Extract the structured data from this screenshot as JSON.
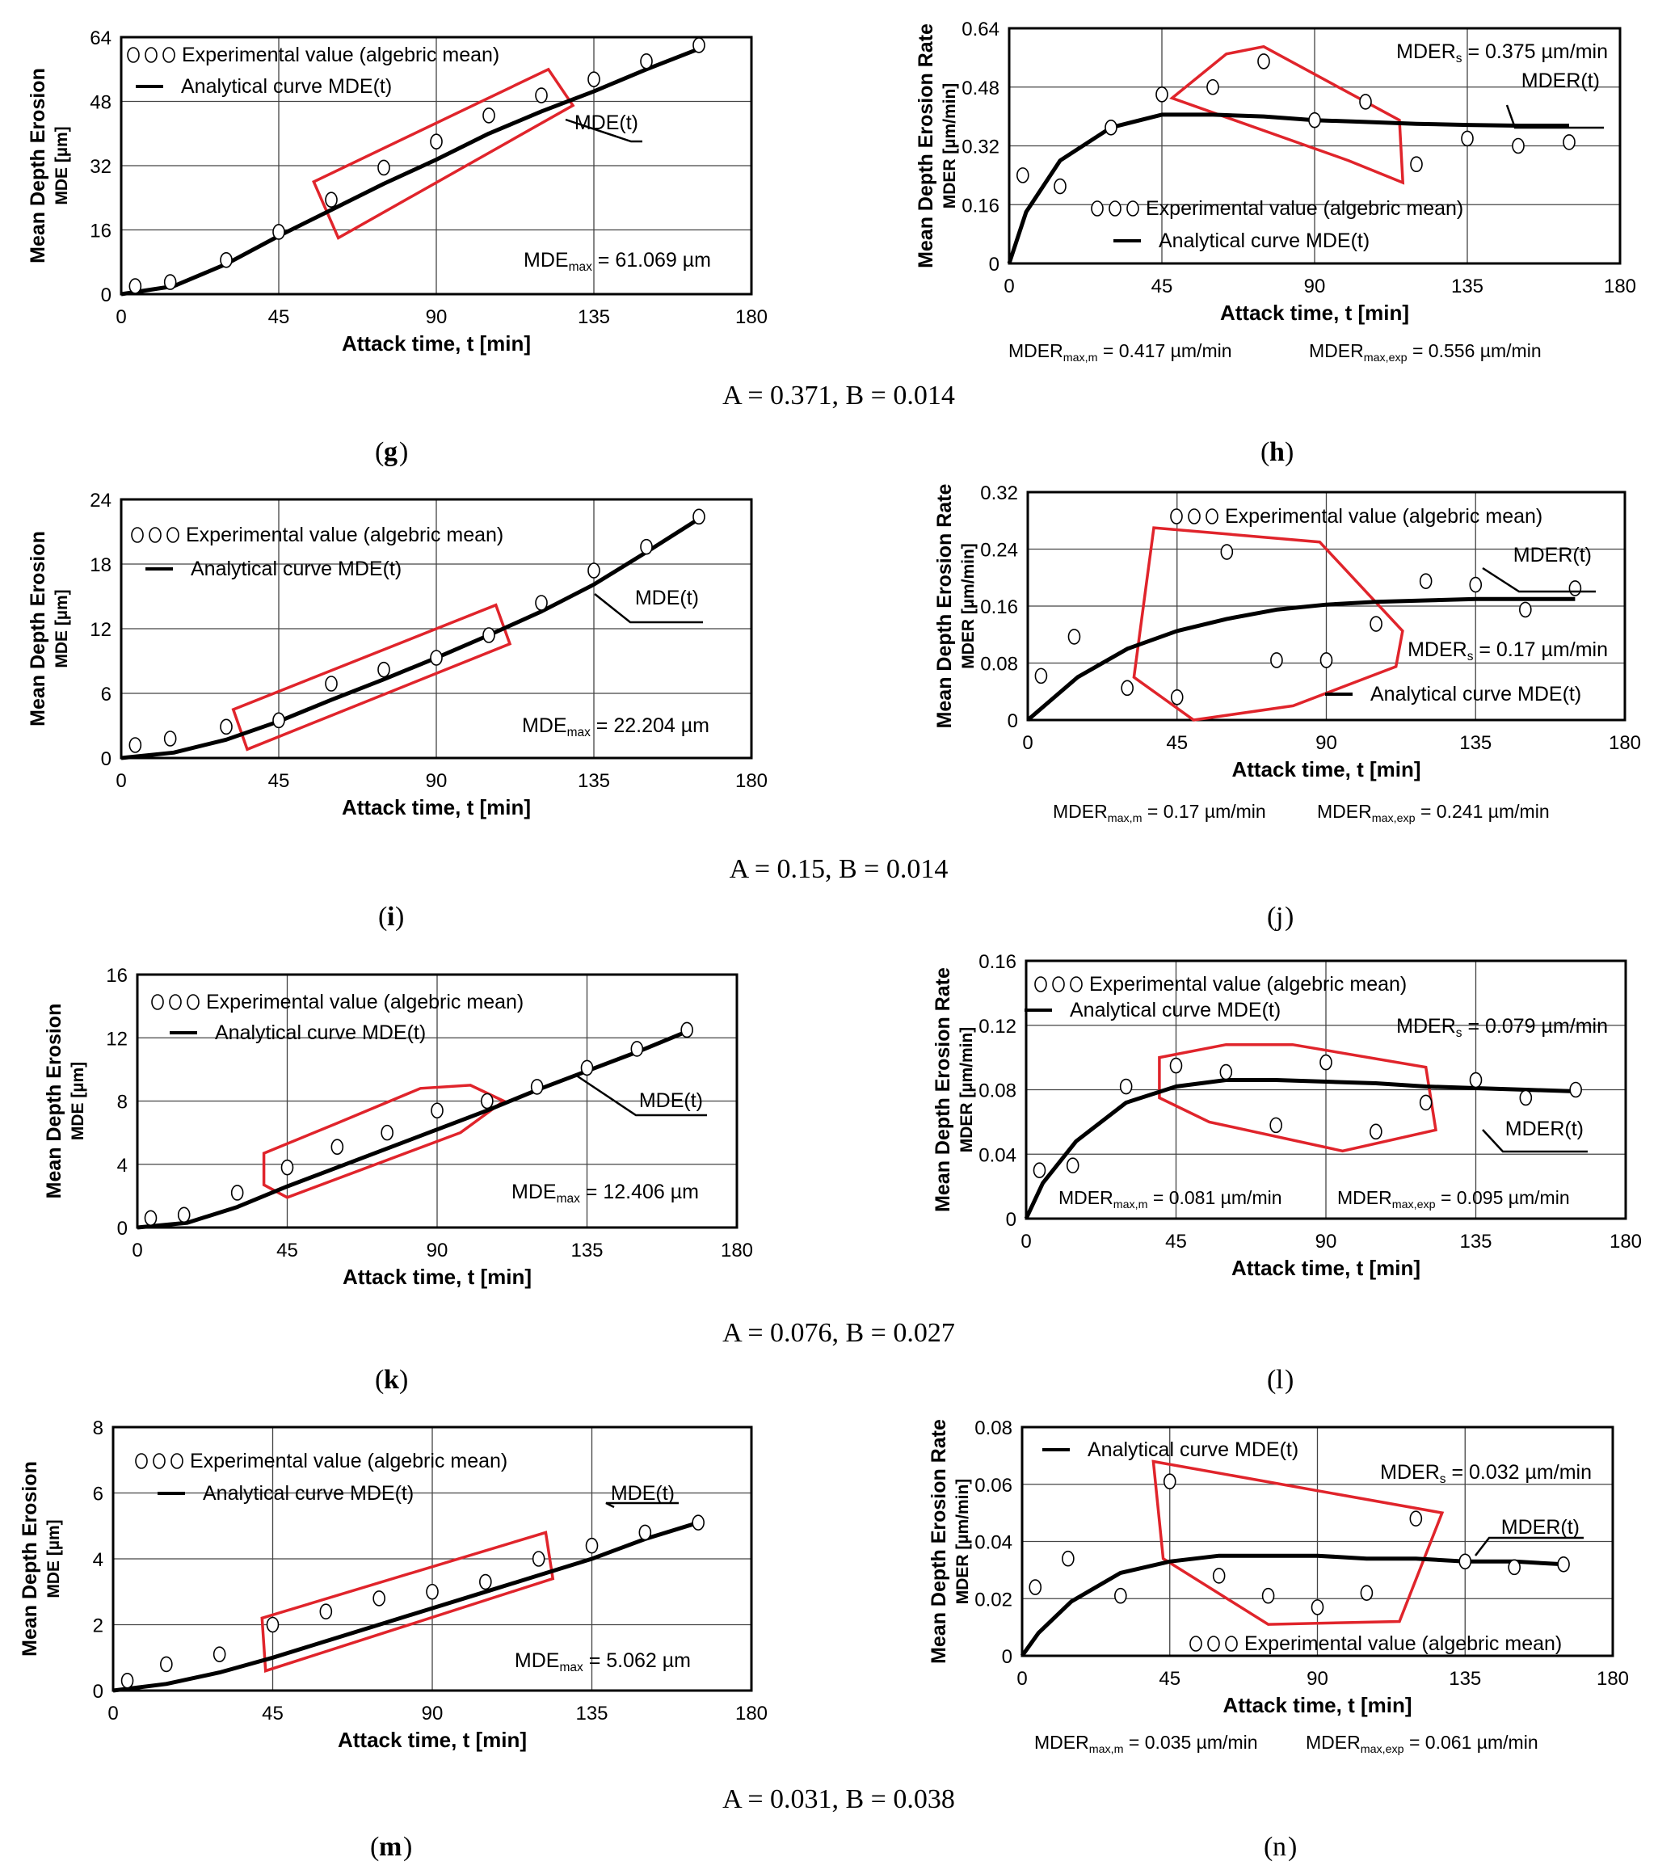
{
  "figure": {
    "rows": [
      {
        "left_id": "g",
        "right_id": "h",
        "params": "A = 0.371, B = 0.014"
      },
      {
        "left_id": "i",
        "right_id": "j",
        "params": "A = 0.15, B = 0.014"
      },
      {
        "left_id": "k",
        "right_id": "l",
        "params": "A = 0.076, B = 0.027"
      },
      {
        "left_id": "m",
        "right_id": "n",
        "params": "A = 0.031, B = 0.038"
      }
    ]
  },
  "chart_data": [
    {
      "id": "g",
      "type": "scatter+line",
      "ylabel_top": "Mean Depth Erosion",
      "ylabel_sub": "MDE [µm]",
      "xlabel": "Attack time, t [min]",
      "xlim": [
        0,
        180
      ],
      "xticks": [
        0,
        45,
        90,
        135,
        180
      ],
      "ylim": [
        0,
        64
      ],
      "yticks": [
        0,
        16,
        32,
        48,
        64
      ],
      "legend": {
        "experimental": "Experimental value (algebric mean)",
        "analytical": "Analytical curve MDE(t)"
      },
      "curve_label": "MDE(t)",
      "annotations": [
        "MDEmax = 61.069 µm"
      ],
      "experimental": {
        "x": [
          4,
          14,
          30,
          45,
          60,
          75,
          90,
          105,
          120,
          135,
          150,
          165
        ],
        "y": [
          2,
          3,
          8.5,
          15.5,
          23.5,
          31.5,
          38,
          44.5,
          49.5,
          53.5,
          58,
          62
        ]
      },
      "analytical": {
        "x": [
          0,
          15,
          30,
          45,
          60,
          75,
          90,
          105,
          120,
          135,
          150,
          165
        ],
        "y": [
          0,
          2,
          7.5,
          14.5,
          21,
          27.5,
          33.5,
          40,
          45.5,
          50.5,
          56,
          61.1
        ]
      },
      "highlight": [
        [
          55,
          28
        ],
        [
          122,
          56
        ],
        [
          129,
          47
        ],
        [
          62,
          14
        ]
      ]
    },
    {
      "id": "h",
      "type": "scatter+line",
      "ylabel_top": "Mean Depth Erosion Rate",
      "ylabel_sub": "MDER  [µm/min]",
      "xlabel": "Attack time, t [min]",
      "xlim": [
        0,
        180
      ],
      "xticks": [
        0,
        45,
        90,
        135,
        180
      ],
      "ylim": [
        0,
        0.64
      ],
      "yticks": [
        0,
        0.16,
        0.32,
        0.48,
        0.64
      ],
      "legend": {
        "experimental": "Experimental value (algebric mean)",
        "analytical": "Analytical curve MDE(t)"
      },
      "curve_label": "MDER(t)",
      "annotations": [
        "MDERs = 0.375 µm/min",
        "MDERmax,m = 0.417 µm/min",
        "MDERmax,exp = 0.556 µm/min"
      ],
      "experimental": {
        "x": [
          4,
          15,
          30,
          45,
          60,
          75,
          90,
          105,
          120,
          135,
          150,
          165
        ],
        "y": [
          0.24,
          0.21,
          0.37,
          0.46,
          0.48,
          0.55,
          0.39,
          0.44,
          0.27,
          0.34,
          0.32,
          0.33
        ]
      },
      "analytical": {
        "x": [
          0,
          5,
          15,
          30,
          45,
          60,
          75,
          90,
          105,
          120,
          135,
          150,
          165
        ],
        "y": [
          0,
          0.14,
          0.28,
          0.37,
          0.405,
          0.405,
          0.4,
          0.39,
          0.385,
          0.38,
          0.377,
          0.375,
          0.375
        ]
      },
      "highlight": [
        [
          48,
          0.45
        ],
        [
          64,
          0.57
        ],
        [
          75,
          0.59
        ],
        [
          115,
          0.39
        ],
        [
          116,
          0.22
        ],
        [
          100,
          0.28
        ],
        [
          48,
          0.45
        ]
      ]
    },
    {
      "id": "i",
      "type": "scatter+line",
      "ylabel_top": "Mean Depth Erosion",
      "ylabel_sub": "MDE [µm]",
      "xlabel": "Attack time, t [min]",
      "xlim": [
        0,
        180
      ],
      "xticks": [
        0,
        45,
        90,
        135,
        180
      ],
      "ylim": [
        0,
        24
      ],
      "yticks": [
        0,
        6,
        12,
        18,
        24
      ],
      "legend": {
        "experimental": "Experimental value (algebric mean)",
        "analytical": "Analytical curve MDE(t)"
      },
      "curve_label": "MDE(t)",
      "annotations": [
        "MDEmax = 22.204 µm"
      ],
      "experimental": {
        "x": [
          4,
          14,
          30,
          45,
          60,
          75,
          90,
          105,
          120,
          135,
          150,
          165
        ],
        "y": [
          1.2,
          1.8,
          2.9,
          3.5,
          6.9,
          8.2,
          9.3,
          11.4,
          14.4,
          17.4,
          19.6,
          22.4
        ]
      },
      "analytical": {
        "x": [
          0,
          15,
          30,
          45,
          60,
          75,
          90,
          105,
          120,
          135,
          150,
          165
        ],
        "y": [
          0,
          0.5,
          1.7,
          3.4,
          5.4,
          7.3,
          9.3,
          11.4,
          13.6,
          16.1,
          19.1,
          22.2
        ]
      },
      "highlight": [
        [
          32,
          4.5
        ],
        [
          107,
          14.2
        ],
        [
          111,
          10.6
        ],
        [
          36,
          0.8
        ]
      ]
    },
    {
      "id": "j",
      "type": "scatter+line",
      "ylabel_top": "Mean Depth Erosion Rate",
      "ylabel_sub": "MDER  [µm/min]",
      "xlabel": "Attack time, t [min]",
      "xlim": [
        0,
        180
      ],
      "xticks": [
        0,
        45,
        90,
        135,
        180
      ],
      "ylim": [
        0,
        0.32
      ],
      "yticks": [
        0,
        0.08,
        0.16,
        0.24,
        0.32
      ],
      "legend": {
        "experimental": "Experimental value (algebric mean)",
        "analytical": "Analytical curve MDE(t)"
      },
      "curve_label": "MDER(t)",
      "annotations": [
        "MDERs = 0.17 µm/min",
        "MDERmax,m = 0.17 µm/min",
        "MDERmax,exp = 0.241 µm/min"
      ],
      "experimental": {
        "x": [
          4,
          14,
          30,
          45,
          60,
          75,
          90,
          105,
          120,
          135,
          150,
          165
        ],
        "y": [
          0.062,
          0.117,
          0.045,
          0.032,
          0.236,
          0.084,
          0.084,
          0.135,
          0.195,
          0.19,
          0.155,
          0.185
        ]
      },
      "analytical": {
        "x": [
          0,
          15,
          30,
          45,
          60,
          75,
          90,
          105,
          120,
          135,
          150,
          165
        ],
        "y": [
          0,
          0.06,
          0.1,
          0.125,
          0.142,
          0.155,
          0.162,
          0.166,
          0.168,
          0.17,
          0.17,
          0.17
        ]
      },
      "highlight": [
        [
          38,
          0.27
        ],
        [
          88,
          0.25
        ],
        [
          113,
          0.125
        ],
        [
          111,
          0.075
        ],
        [
          80,
          0.02
        ],
        [
          50,
          0
        ],
        [
          32,
          0.06
        ],
        [
          38,
          0.27
        ]
      ]
    },
    {
      "id": "k",
      "type": "scatter+line",
      "ylabel_top": "Mean Depth Erosion",
      "ylabel_sub": "MDE [µm]",
      "xlabel": "Attack time, t [min]",
      "xlim": [
        0,
        180
      ],
      "xticks": [
        0,
        45,
        90,
        135,
        180
      ],
      "ylim": [
        0,
        16
      ],
      "yticks": [
        0,
        4,
        8,
        12,
        16
      ],
      "legend": {
        "experimental": "Experimental value (algebric mean)",
        "analytical": "Analytical curve MDE(t)"
      },
      "curve_label": "MDE(t)",
      "annotations": [
        "MDEmax = 12.406 µm"
      ],
      "experimental": {
        "x": [
          4,
          14,
          30,
          45,
          60,
          75,
          90,
          105,
          120,
          135,
          150,
          165
        ],
        "y": [
          0.6,
          0.8,
          2.2,
          3.8,
          5.1,
          6,
          7.4,
          8,
          8.9,
          10.1,
          11.3,
          12.5
        ]
      },
      "analytical": {
        "x": [
          0,
          15,
          30,
          45,
          60,
          75,
          90,
          105,
          120,
          135,
          150,
          165
        ],
        "y": [
          0,
          0.3,
          1.3,
          2.6,
          3.8,
          5,
          6.2,
          7.4,
          8.7,
          9.9,
          11.1,
          12.4
        ]
      },
      "highlight": [
        [
          38,
          4.7
        ],
        [
          60,
          6.6
        ],
        [
          85,
          8.8
        ],
        [
          100,
          9
        ],
        [
          110,
          8
        ],
        [
          97,
          6
        ],
        [
          45,
          1.9
        ],
        [
          38,
          2.7
        ],
        [
          38,
          4.7
        ]
      ]
    },
    {
      "id": "l",
      "type": "scatter+line",
      "ylabel_top": "Mean Depth Erosion Rate",
      "ylabel_sub": "MDER  [µm/min]",
      "xlabel": "Attack time, t [min]",
      "xlim": [
        0,
        180
      ],
      "xticks": [
        0,
        45,
        90,
        135,
        180
      ],
      "ylim": [
        0,
        0.16
      ],
      "yticks": [
        0,
        0.04,
        0.08,
        0.12,
        0.16
      ],
      "legend": {
        "experimental": "Experimental value (algebric mean)",
        "analytical": "Analytical curve MDE(t)"
      },
      "curve_label": "MDER(t)",
      "annotations": [
        "MDERs = 0.079 µm/min",
        "MDERmax,m = 0.081 µm/min",
        "MDERmax,exp = 0.095 µm/min"
      ],
      "experimental": {
        "x": [
          4,
          14,
          30,
          45,
          60,
          75,
          90,
          105,
          120,
          135,
          150,
          165
        ],
        "y": [
          0.03,
          0.033,
          0.082,
          0.095,
          0.091,
          0.058,
          0.097,
          0.054,
          0.072,
          0.086,
          0.075,
          0.08
        ]
      },
      "analytical": {
        "x": [
          0,
          5,
          15,
          30,
          45,
          60,
          75,
          90,
          105,
          120,
          135,
          150,
          165
        ],
        "y": [
          0,
          0.022,
          0.048,
          0.072,
          0.082,
          0.086,
          0.086,
          0.085,
          0.084,
          0.082,
          0.081,
          0.08,
          0.079
        ]
      },
      "highlight": [
        [
          40,
          0.1
        ],
        [
          60,
          0.108
        ],
        [
          80,
          0.108
        ],
        [
          120,
          0.094
        ],
        [
          123,
          0.055
        ],
        [
          95,
          0.042
        ],
        [
          55,
          0.06
        ],
        [
          40,
          0.075
        ],
        [
          40,
          0.1
        ]
      ]
    },
    {
      "id": "m",
      "type": "scatter+line",
      "ylabel_top": "Mean Depth Erosion",
      "ylabel_sub": "MDE [µm]",
      "xlabel": "Attack time, t [min]",
      "xlim": [
        0,
        180
      ],
      "xticks": [
        0,
        45,
        90,
        135,
        180
      ],
      "ylim": [
        0,
        8
      ],
      "yticks": [
        0,
        2,
        4,
        6,
        8
      ],
      "legend": {
        "experimental": "Experimental value (algebric mean)",
        "analytical": "Analytical curve MDE(t)"
      },
      "curve_label": "MDE(t)",
      "annotations": [
        "MDEmax = 5.062 µm"
      ],
      "experimental": {
        "x": [
          4,
          15,
          30,
          45,
          60,
          75,
          90,
          105,
          120,
          135,
          150,
          165
        ],
        "y": [
          0.3,
          0.8,
          1.1,
          2,
          2.4,
          2.8,
          3,
          3.3,
          4,
          4.4,
          4.8,
          5.1
        ]
      },
      "analytical": {
        "x": [
          0,
          15,
          30,
          45,
          60,
          75,
          90,
          105,
          120,
          135,
          150,
          165
        ],
        "y": [
          0,
          0.2,
          0.55,
          1,
          1.5,
          2,
          2.5,
          3,
          3.5,
          4,
          4.6,
          5.1
        ]
      },
      "highlight": [
        [
          42,
          2.2
        ],
        [
          122,
          4.8
        ],
        [
          124,
          3.4
        ],
        [
          43,
          0.6
        ]
      ]
    },
    {
      "id": "n",
      "type": "scatter+line",
      "ylabel_top": "Mean Depth Erosion Rate",
      "ylabel_sub": "MDER  [µm/min]",
      "xlabel": "Attack time, t  [min]",
      "xlim": [
        0,
        180
      ],
      "xticks": [
        0,
        45,
        90,
        135,
        180
      ],
      "ylim": [
        0,
        0.08
      ],
      "yticks": [
        0,
        0.02,
        0.04,
        0.06,
        0.08
      ],
      "legend": {
        "experimental": "Experimental value (algebric mean)",
        "analytical": "Analytical curve MDE(t)"
      },
      "curve_label": "MDER(t)",
      "annotations": [
        "MDERs = 0.032 µm/min",
        "MDERmax,m = 0.035 µm/min",
        "MDERmax,exp = 0.061 µm/min"
      ],
      "experimental": {
        "x": [
          4,
          14,
          30,
          45,
          60,
          75,
          90,
          105,
          120,
          135,
          150,
          165
        ],
        "y": [
          0.024,
          0.034,
          0.021,
          0.061,
          0.028,
          0.021,
          0.017,
          0.022,
          0.048,
          0.033,
          0.031,
          0.032
        ]
      },
      "analytical": {
        "x": [
          0,
          5,
          15,
          30,
          45,
          60,
          75,
          90,
          105,
          120,
          135,
          150,
          165
        ],
        "y": [
          0,
          0.008,
          0.019,
          0.029,
          0.033,
          0.035,
          0.035,
          0.035,
          0.034,
          0.034,
          0.033,
          0.033,
          0.032
        ]
      },
      "highlight": [
        [
          40,
          0.068
        ],
        [
          128,
          0.05
        ],
        [
          115,
          0.012
        ],
        [
          75,
          0.011
        ],
        [
          43,
          0.034
        ],
        [
          40,
          0.068
        ]
      ]
    }
  ]
}
